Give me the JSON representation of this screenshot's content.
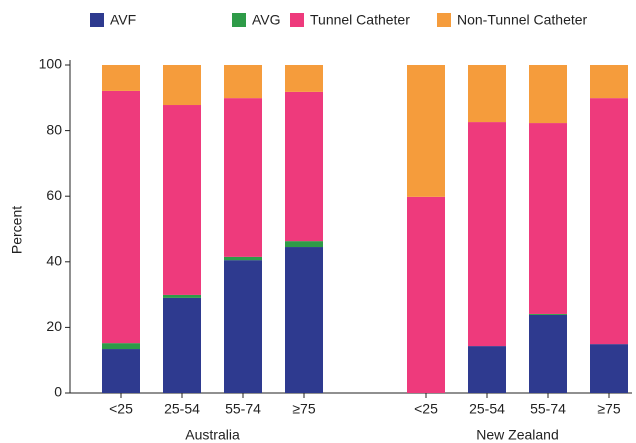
{
  "chart_data": {
    "type": "stacked_bar",
    "y_label": "Percent",
    "categories": [
      "<25",
      "25-54",
      "55-74",
      "≥75",
      "<25",
      "25-54",
      "55-74",
      "≥75"
    ],
    "group_labels": [
      "Australia",
      "New Zealand"
    ],
    "series": [
      {
        "name": "AVF",
        "color": "#2e3a8f",
        "values": [
          13.4,
          29.0,
          40.5,
          44.5,
          0,
          14.3,
          23.8,
          14.9
        ]
      },
      {
        "name": "AVG",
        "color": "#2e9b48",
        "values": [
          1.8,
          0.9,
          1.0,
          1.8,
          0,
          0,
          0.3,
          0
        ]
      },
      {
        "name": "Tunnel Catheter",
        "color": "#ee3a7c",
        "values": [
          76.9,
          57.9,
          48.4,
          45.5,
          59.8,
          68.3,
          58.2,
          75.0
        ]
      },
      {
        "name": "Non-Tunnel Catheter",
        "color": "#f59c3c",
        "values": [
          7.9,
          12.2,
          10.1,
          8.2,
          40.2,
          17.4,
          17.7,
          10.1
        ]
      }
    ],
    "ylim": [
      0,
      100
    ],
    "yticks": [
      0,
      20,
      40,
      60,
      80,
      100
    ]
  }
}
